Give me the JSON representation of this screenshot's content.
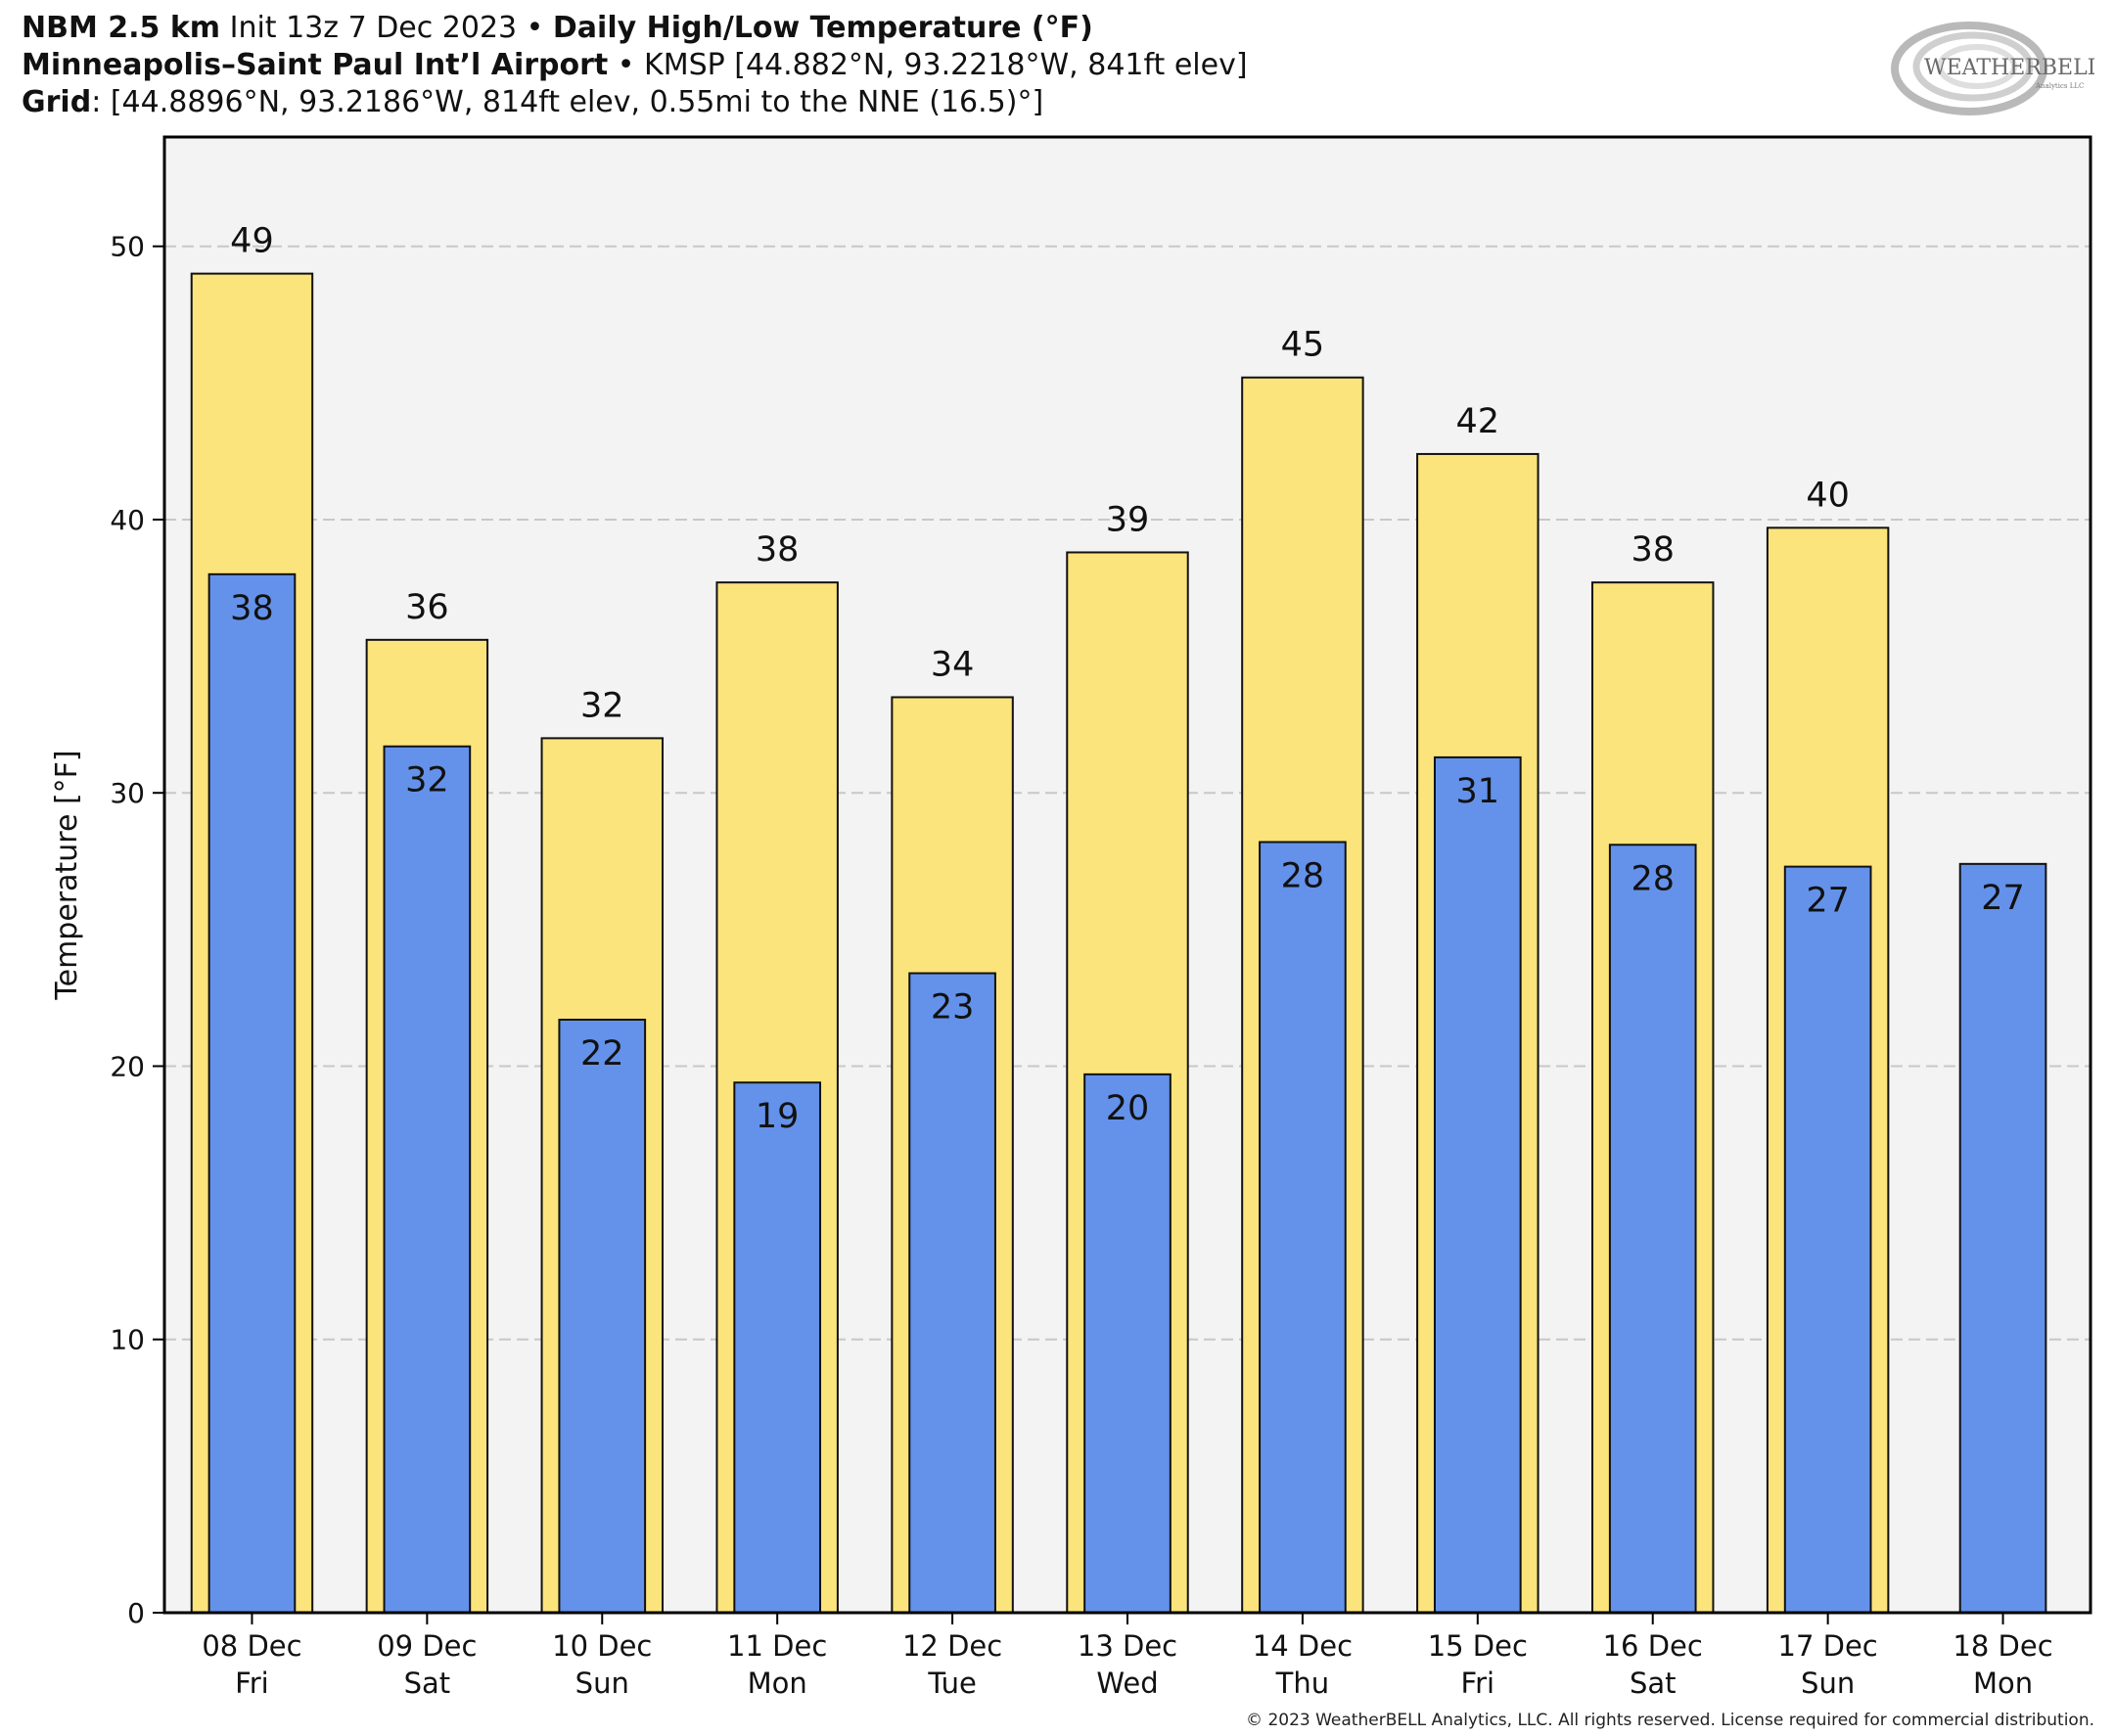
{
  "header": {
    "line1_bold_a": "NBM 2.5 km",
    "line1_a": " Init 13z 7 Dec 2023 • ",
    "line1_bold_b": "Daily High/Low Temperature (°F)",
    "line2_bold": "Minneapolis–Saint Paul Int’l Airport",
    "line2": " • KMSP [44.882°N, 93.2218°W, 841ft elev]",
    "line3_bold": "Grid",
    "line3": ": [44.8896°N, 93.2186°W, 814ft elev, 0.55mi to the NNE (16.5)°]"
  },
  "logo": {
    "text": "WEATHERBELL",
    "subtext": "Analytics LLC"
  },
  "footer": {
    "copyright": "© 2023 WeatherBELL Analytics, LLC. All rights reserved. License required for commercial distribution."
  },
  "colors": {
    "high": "#fce47c",
    "low": "#6492ea",
    "plot_bg": "#f4f3f4",
    "grid": "#c8c8c8"
  },
  "chart_data": {
    "type": "bar",
    "ylabel": "Temperature [°F]",
    "ylim": [
      0,
      54
    ],
    "yticks": [
      0,
      10,
      20,
      30,
      40,
      50
    ],
    "grid": true,
    "categories": [
      [
        "08 Dec",
        "Fri"
      ],
      [
        "09 Dec",
        "Sat"
      ],
      [
        "10 Dec",
        "Sun"
      ],
      [
        "11 Dec",
        "Mon"
      ],
      [
        "12 Dec",
        "Tue"
      ],
      [
        "13 Dec",
        "Wed"
      ],
      [
        "14 Dec",
        "Thu"
      ],
      [
        "15 Dec",
        "Fri"
      ],
      [
        "16 Dec",
        "Sat"
      ],
      [
        "17 Dec",
        "Sun"
      ],
      [
        "18 Dec",
        "Mon"
      ]
    ],
    "series": [
      {
        "values": [
          49,
          35.6,
          32,
          37.7,
          33.5,
          38.8,
          45.2,
          42.4,
          37.7,
          39.7,
          null
        ],
        "labels": [
          "49",
          "36",
          "32",
          "38",
          "34",
          "39",
          "45",
          "42",
          "38",
          "40",
          ""
        ]
      },
      {
        "values": [
          38,
          31.7,
          21.7,
          19.4,
          23.4,
          19.7,
          28.2,
          31.3,
          28.1,
          27.3,
          27.4
        ],
        "labels": [
          "38",
          "32",
          "22",
          "19",
          "23",
          "20",
          "28",
          "31",
          "28",
          "27",
          "27"
        ]
      }
    ]
  }
}
